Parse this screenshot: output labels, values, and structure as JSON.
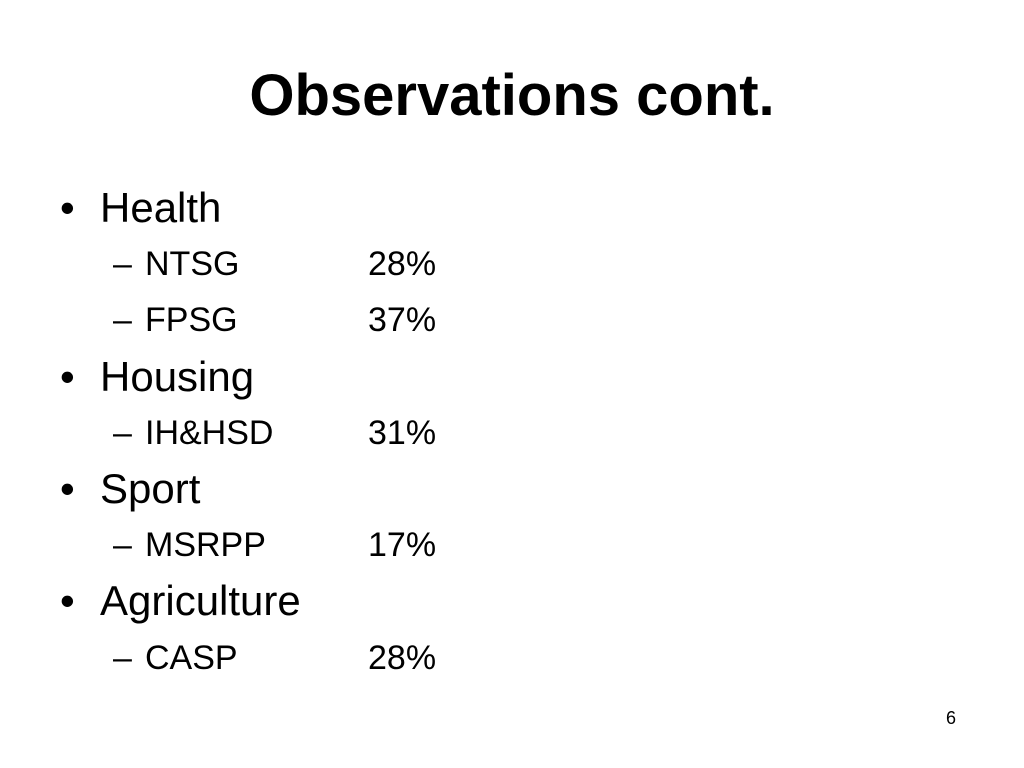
{
  "title": "Observations cont.",
  "items": [
    {
      "label": "Health",
      "subitems": [
        {
          "label": "NTSG",
          "value": "28%"
        },
        {
          "label": "FPSG",
          "value": "37%"
        }
      ]
    },
    {
      "label": "Housing",
      "subitems": [
        {
          "label": "IH&HSD",
          "value": "31%"
        }
      ]
    },
    {
      "label": "Sport",
      "subitems": [
        {
          "label": "MSRPP",
          "value": "17%"
        }
      ]
    },
    {
      "label": "Agriculture",
      "subitems": [
        {
          "label": "CASP",
          "value": "28%"
        }
      ]
    }
  ],
  "page_number": "6"
}
